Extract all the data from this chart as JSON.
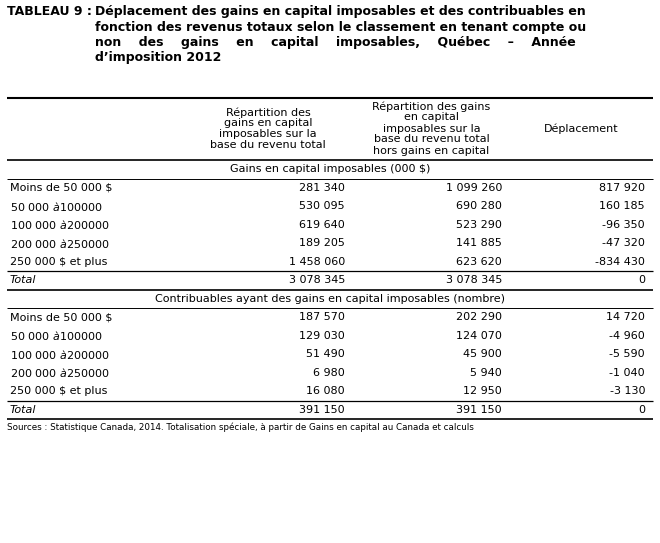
{
  "title_label": "TABLEAU 9 :",
  "title_lines": [
    "Déplacement des gains en capital imposables et des contribuables en",
    "fonction des revenus totaux selon le classement en tenant compte ou",
    "non    des    gains    en    capital    imposables,    Québec    –    Année",
    "d’imposition 2012"
  ],
  "col_headers": [
    "",
    "Répartition des\ngains en capital\nimposables sur la\nbase du revenu total",
    "Répartition des gains\nen capital\nimposables sur la\nbase du revenu total\nhors gains en capital",
    "Déplacement"
  ],
  "section1_header": "Gains en capital imposables (000 $)",
  "section1_rows": [
    [
      "Moins de 50 000 $",
      "281 340",
      "1 099 260",
      "817 920"
    ],
    [
      "50 000 $ à 100 000 $",
      "530 095",
      "690 280",
      "160 185"
    ],
    [
      "100 000 $ à 200 000 $",
      "619 640",
      "523 290",
      "-96 350"
    ],
    [
      "200 000 $ à 250 000 $",
      "189 205",
      "141 885",
      "-47 320"
    ],
    [
      "250 000 $ et plus",
      "1 458 060",
      "623 620",
      "-834 430"
    ]
  ],
  "section1_total": [
    "Total",
    "3 078 345",
    "3 078 345",
    "0"
  ],
  "section2_header": "Contribuables ayant des gains en capital imposables (nombre)",
  "section2_rows": [
    [
      "Moins de 50 000 $",
      "187 570",
      "202 290",
      "14 720"
    ],
    [
      "50 000 $ à 100 000 $",
      "129 030",
      "124 070",
      "-4 960"
    ],
    [
      "100 000 $ à 200 000 $",
      "51 490",
      "45 900",
      "-5 590"
    ],
    [
      "200 000 $ à 250 000 $",
      "6 980",
      "5 940",
      "-1 040"
    ],
    [
      "250 000 $ et plus",
      "16 080",
      "12 950",
      "-3 130"
    ]
  ],
  "section2_total": [
    "Total",
    "391 150",
    "391 150",
    "0"
  ],
  "footnote": "Sources : Statistique Canada, 2014. Totalisation spéciale, à partir de Gains en capital au Canada et calculs",
  "bg_color": "#ffffff",
  "text_color": "#000000"
}
